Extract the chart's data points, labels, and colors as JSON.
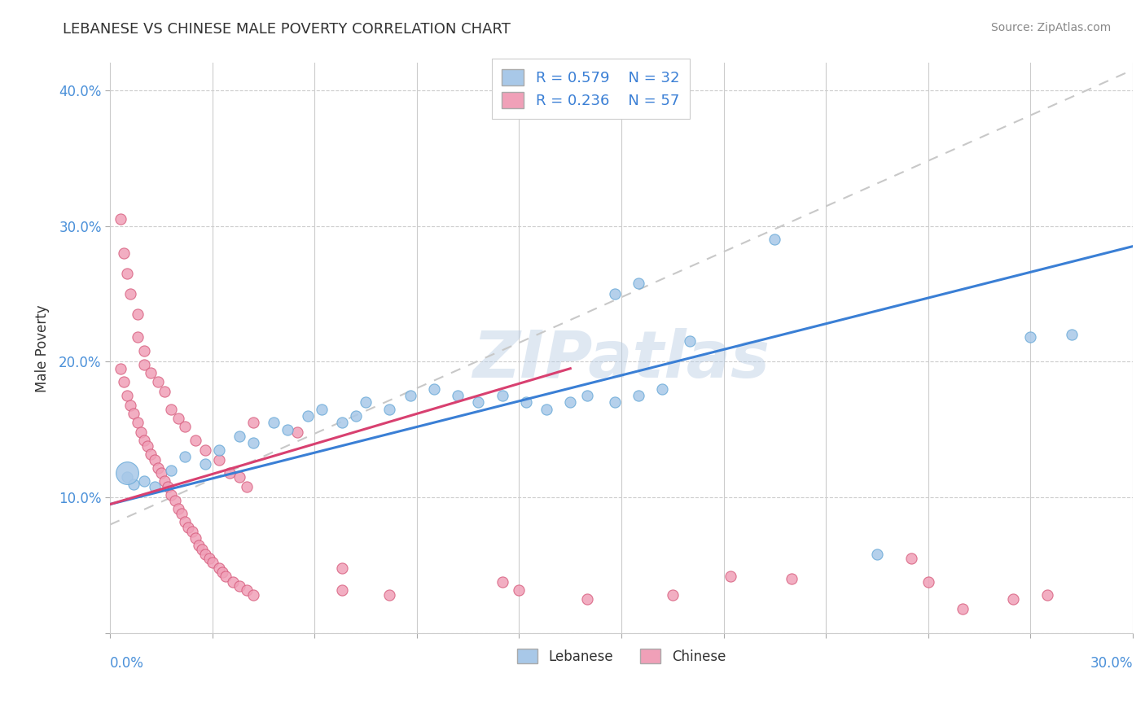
{
  "title": "LEBANESE VS CHINESE MALE POVERTY CORRELATION CHART",
  "source": "Source: ZipAtlas.com",
  "ylabel": "Male Poverty",
  "xlim": [
    0.0,
    0.3
  ],
  "ylim": [
    0.0,
    0.42
  ],
  "watermark": "ZIPatlas",
  "lebanese_color": "#a8c8e8",
  "lebanese_edge": "#6aaad8",
  "chinese_color": "#f0a0b8",
  "chinese_edge": "#d86080",
  "lebanese_line_color": "#3a7fd5",
  "chinese_line_color": "#d84070",
  "trendline_color": "#c8c8c8",
  "leb_line_x0": 0.0,
  "leb_line_y0": 0.095,
  "leb_line_x1": 0.3,
  "leb_line_y1": 0.285,
  "chi_line_x0": 0.0,
  "chi_line_y0": 0.095,
  "chi_line_x1": 0.135,
  "chi_line_y1": 0.195,
  "dash_line_x0": 0.0,
  "dash_line_y0": 0.08,
  "dash_line_x1": 0.3,
  "dash_line_y1": 0.415,
  "lebanese_points": [
    [
      0.005,
      0.115
    ],
    [
      0.007,
      0.11
    ],
    [
      0.01,
      0.112
    ],
    [
      0.013,
      0.108
    ],
    [
      0.018,
      0.12
    ],
    [
      0.022,
      0.13
    ],
    [
      0.028,
      0.125
    ],
    [
      0.032,
      0.135
    ],
    [
      0.038,
      0.145
    ],
    [
      0.042,
      0.14
    ],
    [
      0.048,
      0.155
    ],
    [
      0.052,
      0.15
    ],
    [
      0.058,
      0.16
    ],
    [
      0.062,
      0.165
    ],
    [
      0.068,
      0.155
    ],
    [
      0.072,
      0.16
    ],
    [
      0.075,
      0.17
    ],
    [
      0.082,
      0.165
    ],
    [
      0.088,
      0.175
    ],
    [
      0.095,
      0.18
    ],
    [
      0.102,
      0.175
    ],
    [
      0.108,
      0.17
    ],
    [
      0.115,
      0.175
    ],
    [
      0.122,
      0.17
    ],
    [
      0.128,
      0.165
    ],
    [
      0.135,
      0.17
    ],
    [
      0.14,
      0.175
    ],
    [
      0.148,
      0.17
    ],
    [
      0.155,
      0.175
    ],
    [
      0.162,
      0.18
    ],
    [
      0.17,
      0.215
    ],
    [
      0.195,
      0.29
    ],
    [
      0.225,
      0.058
    ],
    [
      0.27,
      0.218
    ],
    [
      0.148,
      0.25
    ],
    [
      0.155,
      0.258
    ],
    [
      0.282,
      0.22
    ]
  ],
  "chinese_points": [
    [
      0.003,
      0.195
    ],
    [
      0.004,
      0.185
    ],
    [
      0.005,
      0.175
    ],
    [
      0.006,
      0.168
    ],
    [
      0.007,
      0.162
    ],
    [
      0.008,
      0.155
    ],
    [
      0.009,
      0.148
    ],
    [
      0.01,
      0.142
    ],
    [
      0.011,
      0.138
    ],
    [
      0.012,
      0.132
    ],
    [
      0.013,
      0.128
    ],
    [
      0.014,
      0.122
    ],
    [
      0.015,
      0.118
    ],
    [
      0.016,
      0.112
    ],
    [
      0.017,
      0.108
    ],
    [
      0.018,
      0.102
    ],
    [
      0.019,
      0.098
    ],
    [
      0.02,
      0.092
    ],
    [
      0.021,
      0.088
    ],
    [
      0.022,
      0.082
    ],
    [
      0.023,
      0.078
    ],
    [
      0.024,
      0.075
    ],
    [
      0.025,
      0.07
    ],
    [
      0.026,
      0.065
    ],
    [
      0.027,
      0.062
    ],
    [
      0.028,
      0.058
    ],
    [
      0.029,
      0.055
    ],
    [
      0.03,
      0.052
    ],
    [
      0.032,
      0.048
    ],
    [
      0.033,
      0.045
    ],
    [
      0.034,
      0.042
    ],
    [
      0.036,
      0.038
    ],
    [
      0.038,
      0.035
    ],
    [
      0.04,
      0.032
    ],
    [
      0.042,
      0.028
    ],
    [
      0.003,
      0.305
    ],
    [
      0.004,
      0.28
    ],
    [
      0.005,
      0.265
    ],
    [
      0.006,
      0.25
    ],
    [
      0.008,
      0.235
    ],
    [
      0.008,
      0.218
    ],
    [
      0.01,
      0.208
    ],
    [
      0.01,
      0.198
    ],
    [
      0.012,
      0.192
    ],
    [
      0.014,
      0.185
    ],
    [
      0.016,
      0.178
    ],
    [
      0.018,
      0.165
    ],
    [
      0.02,
      0.158
    ],
    [
      0.022,
      0.152
    ],
    [
      0.025,
      0.142
    ],
    [
      0.028,
      0.135
    ],
    [
      0.032,
      0.128
    ],
    [
      0.035,
      0.118
    ],
    [
      0.038,
      0.115
    ],
    [
      0.04,
      0.108
    ],
    [
      0.042,
      0.155
    ],
    [
      0.055,
      0.148
    ],
    [
      0.068,
      0.048
    ],
    [
      0.068,
      0.032
    ],
    [
      0.082,
      0.028
    ],
    [
      0.115,
      0.038
    ],
    [
      0.12,
      0.032
    ],
    [
      0.14,
      0.025
    ],
    [
      0.165,
      0.028
    ],
    [
      0.182,
      0.042
    ],
    [
      0.2,
      0.04
    ],
    [
      0.235,
      0.055
    ],
    [
      0.24,
      0.038
    ],
    [
      0.25,
      0.018
    ],
    [
      0.265,
      0.025
    ],
    [
      0.275,
      0.028
    ]
  ],
  "lebanese_big_point": [
    0.005,
    0.118,
    400
  ]
}
